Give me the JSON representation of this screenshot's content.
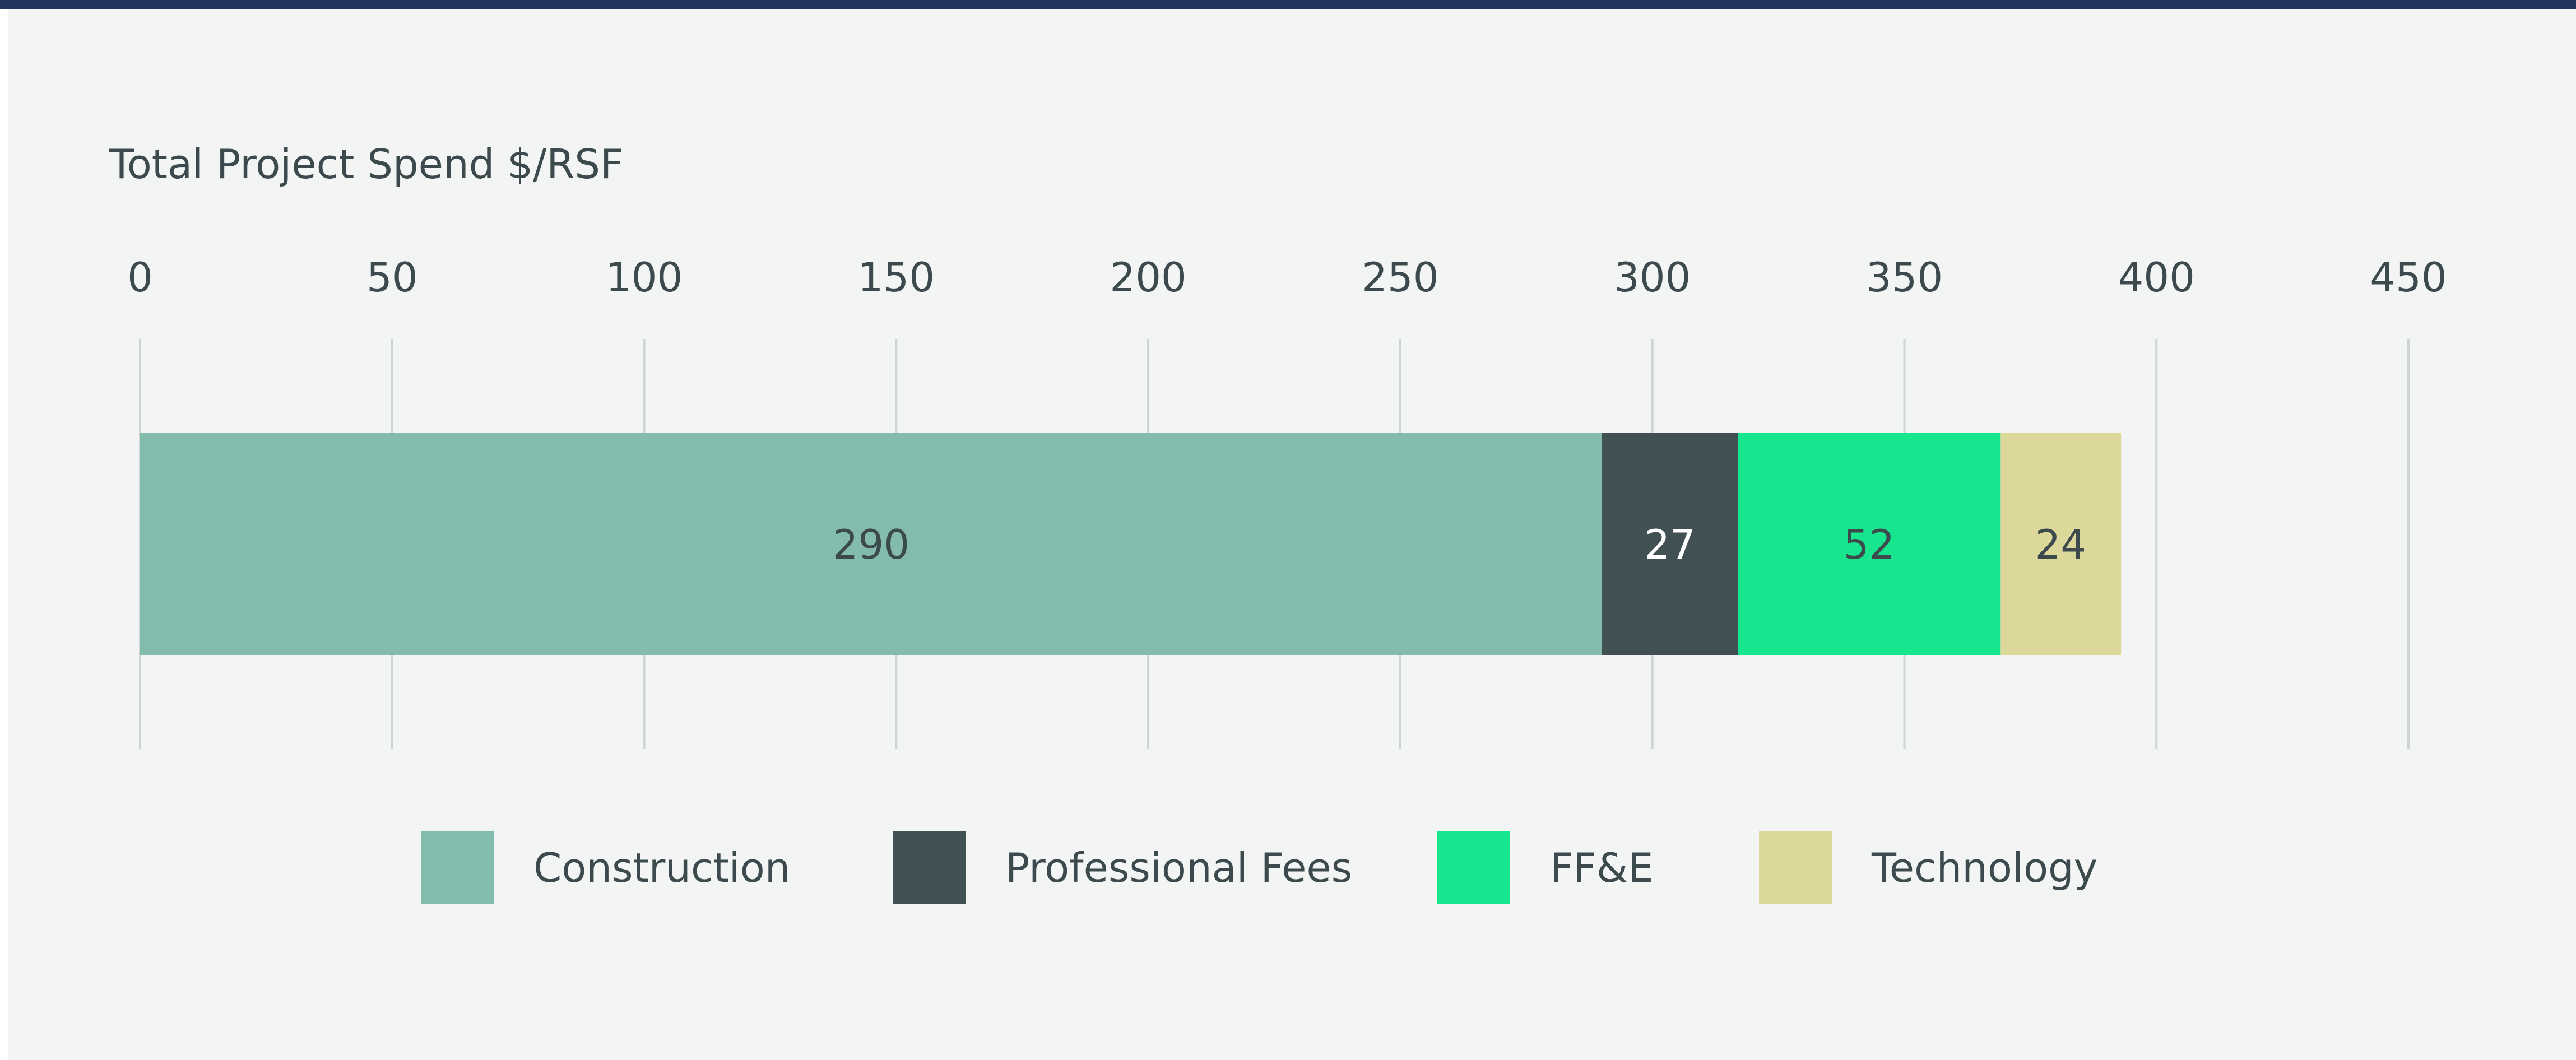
{
  "chart_data": {
    "type": "bar",
    "orientation": "horizontal",
    "stacked": true,
    "title": "Total Project Spend $/RSF",
    "xlim": [
      0,
      450
    ],
    "ticks": [
      0,
      50,
      100,
      150,
      200,
      250,
      300,
      350,
      400,
      450
    ],
    "grid": true,
    "legend_position": "bottom",
    "series": [
      {
        "name": "Construction",
        "value": 290,
        "color": "#83bbad",
        "label_color": "#3d4a4d"
      },
      {
        "name": "Professional Fees",
        "value": 27,
        "color": "#415053",
        "label_color": "#ffffff"
      },
      {
        "name": "FF&E",
        "value": 52,
        "color": "#17e68f",
        "label_color": "#3d4a4d"
      },
      {
        "name": "Technology",
        "value": 24,
        "color": "#dbd89a",
        "label_color": "#3d4a4d"
      }
    ]
  },
  "colors": {
    "top_band": "#22355f",
    "panel": "#f3f5f4",
    "grid": "#cfd3d3",
    "text": "#3d4a4d"
  }
}
